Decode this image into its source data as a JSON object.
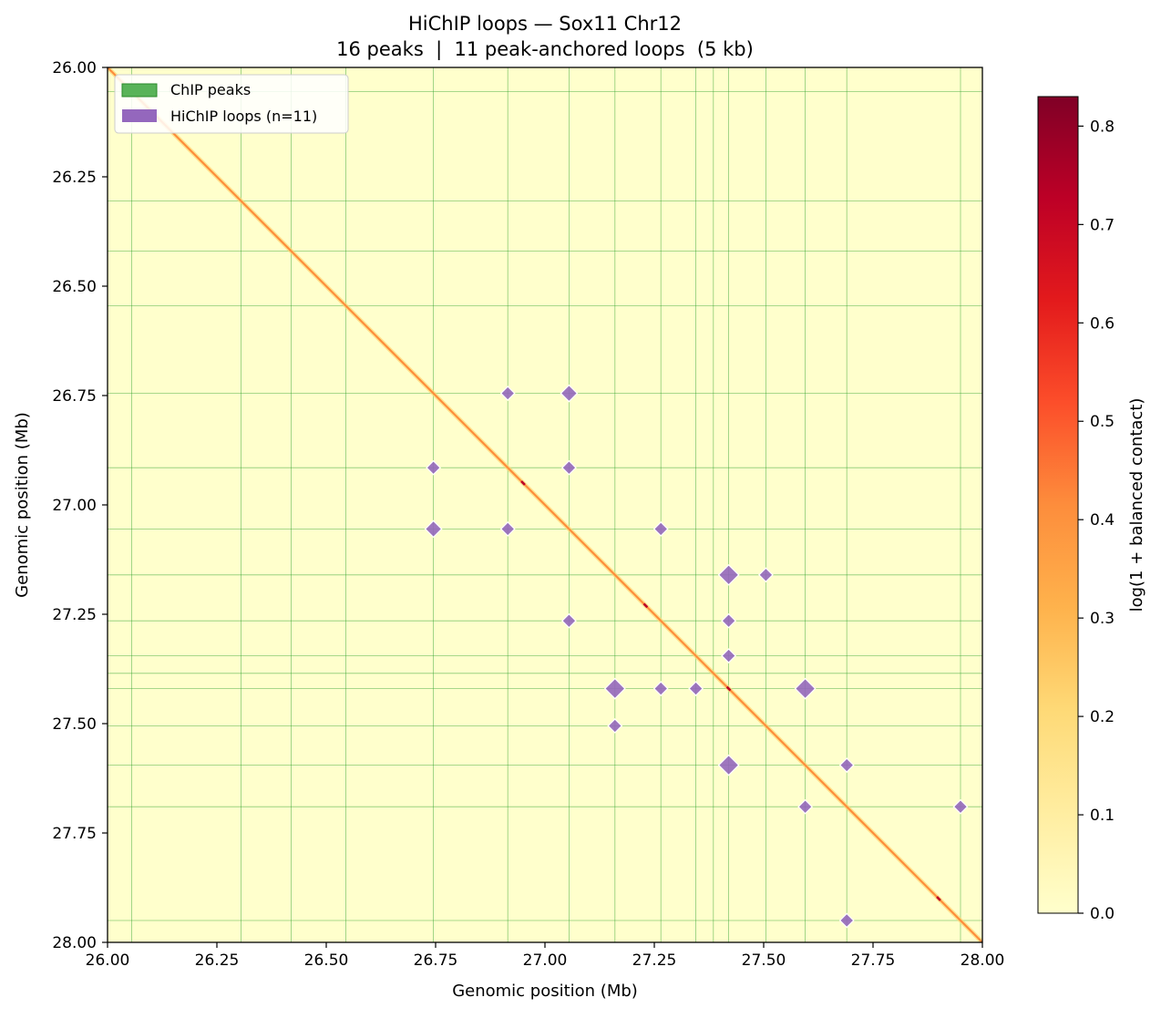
{
  "chart_data": {
    "type": "heatmap",
    "title_line1": "HiChIP loops — Sox11 Chr12",
    "title_line2": "16 peaks  |  11 peak-anchored loops  (5 kb)",
    "xlabel": "Genomic position (Mb)",
    "ylabel": "Genomic position (Mb)",
    "xlim": [
      26.0,
      28.0
    ],
    "ylim": [
      26.0,
      28.0
    ],
    "ticks": [
      26.0,
      26.25,
      26.5,
      26.75,
      27.0,
      27.25,
      27.5,
      27.75,
      28.0
    ],
    "tick_labels": [
      "26.00",
      "26.25",
      "26.50",
      "26.75",
      "27.00",
      "27.25",
      "27.50",
      "27.75",
      "28.00"
    ],
    "peaks_mb": [
      26.055,
      26.305,
      26.42,
      26.545,
      26.745,
      26.915,
      27.055,
      27.16,
      27.265,
      27.345,
      27.385,
      27.42,
      27.505,
      27.595,
      27.69,
      27.95
    ],
    "loops": [
      {
        "x": 26.915,
        "y": 26.745,
        "size": "small"
      },
      {
        "x": 27.055,
        "y": 26.745,
        "size": "medium"
      },
      {
        "x": 26.745,
        "y": 26.915,
        "size": "small"
      },
      {
        "x": 27.055,
        "y": 26.915,
        "size": "small"
      },
      {
        "x": 26.745,
        "y": 27.055,
        "size": "medium"
      },
      {
        "x": 26.915,
        "y": 27.055,
        "size": "small"
      },
      {
        "x": 27.265,
        "y": 27.055,
        "size": "small"
      },
      {
        "x": 27.42,
        "y": 27.16,
        "size": "large"
      },
      {
        "x": 27.505,
        "y": 27.16,
        "size": "small"
      },
      {
        "x": 27.055,
        "y": 27.265,
        "size": "small"
      },
      {
        "x": 27.42,
        "y": 27.265,
        "size": "small"
      },
      {
        "x": 27.42,
        "y": 27.345,
        "size": "small"
      },
      {
        "x": 27.16,
        "y": 27.42,
        "size": "large"
      },
      {
        "x": 27.265,
        "y": 27.42,
        "size": "small"
      },
      {
        "x": 27.345,
        "y": 27.42,
        "size": "small"
      },
      {
        "x": 27.595,
        "y": 27.42,
        "size": "large"
      },
      {
        "x": 27.16,
        "y": 27.505,
        "size": "small"
      },
      {
        "x": 27.42,
        "y": 27.595,
        "size": "large"
      },
      {
        "x": 27.69,
        "y": 27.595,
        "size": "small"
      },
      {
        "x": 27.595,
        "y": 27.69,
        "size": "small"
      },
      {
        "x": 27.95,
        "y": 27.69,
        "size": "small"
      },
      {
        "x": 27.69,
        "y": 27.95,
        "size": "small"
      }
    ],
    "diagonal_hotspots_mb": [
      26.95,
      27.23,
      27.42,
      27.9
    ],
    "legend": {
      "placement": "top-left",
      "entries": [
        {
          "label": "ChIP peaks",
          "color": "#59b359"
        },
        {
          "label": "HiChIP loops (n=11)",
          "color": "#9467bd"
        }
      ]
    },
    "colorbar": {
      "label": "log(1 + balanced contact)",
      "range": [
        0.0,
        0.83
      ],
      "ticks": [
        0.0,
        0.1,
        0.2,
        0.3,
        0.4,
        0.5,
        0.6,
        0.7,
        0.8
      ],
      "tick_labels": [
        "0.0",
        "0.1",
        "0.2",
        "0.3",
        "0.4",
        "0.5",
        "0.6",
        "0.7",
        "0.8"
      ],
      "colormap": "YlOrRd"
    },
    "colors": {
      "background": "#ffffcc",
      "peak_line": "#2ca02c",
      "loop_marker": "#9467bd",
      "diagonal": "#fd8d3c"
    }
  }
}
